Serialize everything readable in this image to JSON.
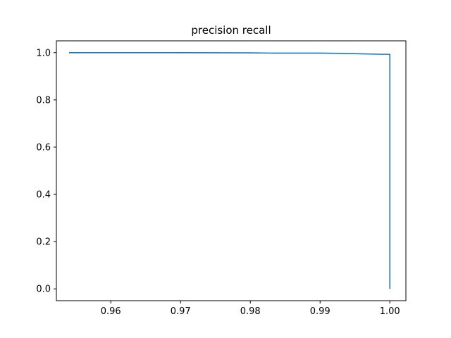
{
  "chart_data": {
    "type": "line",
    "title": "precision recall",
    "xlabel": "",
    "ylabel": "",
    "xlim": [
      0.9522,
      1.0023
    ],
    "ylim": [
      -0.05,
      1.05
    ],
    "x_ticks": [
      0.96,
      0.97,
      0.98,
      0.99,
      1.0
    ],
    "x_tick_labels": [
      "0.96",
      "0.97",
      "0.98",
      "0.99",
      "1.00"
    ],
    "y_ticks": [
      0.0,
      0.2,
      0.4,
      0.6,
      0.8,
      1.0
    ],
    "y_tick_labels": [
      "0.0",
      "0.2",
      "0.4",
      "0.6",
      "0.8",
      "1.0"
    ],
    "grid": false,
    "legend": "none",
    "series": [
      {
        "color": "#1f77b4",
        "x": [
          0.9541,
          0.9541,
          0.96,
          0.97,
          0.98,
          0.9833,
          0.99,
          0.993,
          0.996,
          0.999,
          1.0,
          1.0
        ],
        "y": [
          0.997,
          1.0,
          1.0,
          1.0,
          0.999,
          0.998,
          0.998,
          0.997,
          0.995,
          0.993,
          0.993,
          0.0
        ]
      }
    ]
  }
}
